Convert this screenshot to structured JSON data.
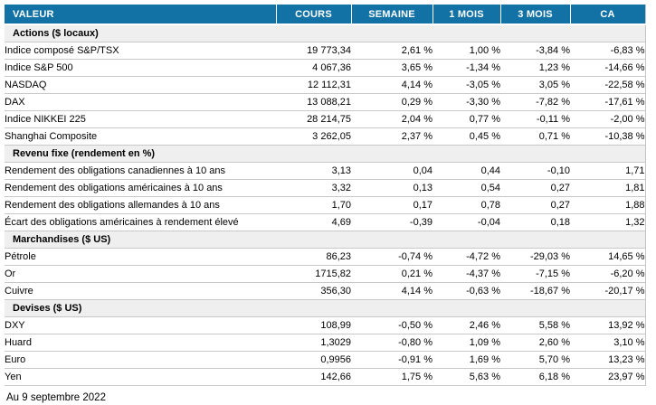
{
  "colors": {
    "header_bg": "#1272a5",
    "header_text": "#ffffff",
    "positive": "#23a469",
    "negative": "#e82d3e",
    "section_bg": "#efefef",
    "row_border": "#c8c8c8"
  },
  "table": {
    "columns": [
      "VALEUR",
      "COURS",
      "SEMAINE",
      "1 MOIS",
      "3 MOIS",
      "CA"
    ],
    "sections": [
      {
        "title": "Actions ($ locaux)",
        "rows": [
          {
            "label": "Indice composé S&P/TSX",
            "cours": "19 773,34",
            "changes": [
              {
                "text": "2,61 %",
                "dir": "up"
              },
              {
                "text": "1,00 %",
                "dir": "up"
              },
              {
                "text": "-3,84 %",
                "dir": "down"
              },
              {
                "text": "-6,83 %",
                "dir": "down"
              }
            ]
          },
          {
            "label": "Indice S&P 500",
            "cours": "4 067,36",
            "changes": [
              {
                "text": "3,65 %",
                "dir": "up"
              },
              {
                "text": "-1,34 %",
                "dir": "down"
              },
              {
                "text": "1,23 %",
                "dir": "up"
              },
              {
                "text": "-14,66 %",
                "dir": "down"
              }
            ]
          },
          {
            "label": "NASDAQ",
            "cours": "12 112,31",
            "changes": [
              {
                "text": "4,14 %",
                "dir": "up"
              },
              {
                "text": "-3,05 %",
                "dir": "down"
              },
              {
                "text": "3,05 %",
                "dir": "up"
              },
              {
                "text": "-22,58 %",
                "dir": "down"
              }
            ]
          },
          {
            "label": "DAX",
            "cours": "13 088,21",
            "changes": [
              {
                "text": "0,29 %",
                "dir": "up"
              },
              {
                "text": "-3,30 %",
                "dir": "down"
              },
              {
                "text": "-7,82 %",
                "dir": "down"
              },
              {
                "text": "-17,61 %",
                "dir": "down"
              }
            ]
          },
          {
            "label": "Indice NIKKEI 225",
            "cours": "28 214,75",
            "changes": [
              {
                "text": "2,04 %",
                "dir": "up"
              },
              {
                "text": "0,77 %",
                "dir": "up"
              },
              {
                "text": "-0,11 %",
                "dir": "down"
              },
              {
                "text": "-2,00 %",
                "dir": "down"
              }
            ]
          },
          {
            "label": "Shanghai Composite",
            "cours": "3 262,05",
            "changes": [
              {
                "text": "2,37 %",
                "dir": "up"
              },
              {
                "text": "0,45 %",
                "dir": "up"
              },
              {
                "text": "0,71 %",
                "dir": "up"
              },
              {
                "text": "-10,38 %",
                "dir": "down"
              }
            ]
          }
        ]
      },
      {
        "title": "Revenu fixe (rendement en %)",
        "rows": [
          {
            "label": "Rendement des obligations canadiennes à 10 ans",
            "cours": "3,13",
            "changes": [
              {
                "text": "0,04",
                "dir": "down"
              },
              {
                "text": "0,44",
                "dir": "down"
              },
              {
                "text": "-0,10",
                "dir": "up"
              },
              {
                "text": "1,71",
                "dir": "down"
              }
            ]
          },
          {
            "label": "Rendement des obligations américaines à 10 ans",
            "cours": "3,32",
            "changes": [
              {
                "text": "0,13",
                "dir": "down"
              },
              {
                "text": "0,54",
                "dir": "down"
              },
              {
                "text": "0,27",
                "dir": "down"
              },
              {
                "text": "1,81",
                "dir": "down"
              }
            ]
          },
          {
            "label": "Rendement des obligations allemandes à 10 ans",
            "cours": "1,70",
            "changes": [
              {
                "text": "0,17",
                "dir": "down"
              },
              {
                "text": "0,78",
                "dir": "down"
              },
              {
                "text": "0,27",
                "dir": "down"
              },
              {
                "text": "1,88",
                "dir": "down"
              }
            ]
          },
          {
            "label": "Écart des obligations américaines à rendement élevé",
            "cours": "4,69",
            "changes": [
              {
                "text": "-0,39",
                "dir": "up"
              },
              {
                "text": "-0,04",
                "dir": "up"
              },
              {
                "text": "0,18",
                "dir": "down"
              },
              {
                "text": "1,32",
                "dir": "down"
              }
            ]
          }
        ]
      },
      {
        "title": "Marchandises ($ US)",
        "rows": [
          {
            "label": "Pétrole",
            "cours": "86,23",
            "changes": [
              {
                "text": "-0,74 %",
                "dir": "down"
              },
              {
                "text": "-4,72 %",
                "dir": "down"
              },
              {
                "text": "-29,03 %",
                "dir": "down"
              },
              {
                "text": "14,65 %",
                "dir": "up"
              }
            ]
          },
          {
            "label": "Or",
            "cours": "1715,82",
            "changes": [
              {
                "text": "0,21 %",
                "dir": "up"
              },
              {
                "text": "-4,37 %",
                "dir": "down"
              },
              {
                "text": "-7,15 %",
                "dir": "down"
              },
              {
                "text": "-6,20 %",
                "dir": "down"
              }
            ]
          },
          {
            "label": "Cuivre",
            "cours": "356,30",
            "changes": [
              {
                "text": "4,14 %",
                "dir": "up"
              },
              {
                "text": "-0,63 %",
                "dir": "down"
              },
              {
                "text": "-18,67 %",
                "dir": "down"
              },
              {
                "text": "-20,17 %",
                "dir": "down"
              }
            ]
          }
        ]
      },
      {
        "title": "Devises ($ US)",
        "rows": [
          {
            "label": "DXY",
            "cours": "108,99",
            "changes": [
              {
                "text": "-0,50 %",
                "dir": "down"
              },
              {
                "text": "2,46 %",
                "dir": "up"
              },
              {
                "text": "5,58 %",
                "dir": "up"
              },
              {
                "text": "13,92 %",
                "dir": "up"
              }
            ]
          },
          {
            "label": "Huard",
            "cours": "1,3029",
            "changes": [
              {
                "text": "-0,80 %",
                "dir": "down"
              },
              {
                "text": "1,09 %",
                "dir": "up"
              },
              {
                "text": "2,60 %",
                "dir": "up"
              },
              {
                "text": "3,10 %",
                "dir": "up"
              }
            ]
          },
          {
            "label": "Euro",
            "cours": "0,9956",
            "changes": [
              {
                "text": "-0,91 %",
                "dir": "down"
              },
              {
                "text": "1,69 %",
                "dir": "up"
              },
              {
                "text": "5,70 %",
                "dir": "up"
              },
              {
                "text": "13,23 %",
                "dir": "up"
              }
            ]
          },
          {
            "label": "Yen",
            "cours": "142,66",
            "changes": [
              {
                "text": "1,75 %",
                "dir": "up"
              },
              {
                "text": "5,63 %",
                "dir": "up"
              },
              {
                "text": "6,18 %",
                "dir": "up"
              },
              {
                "text": "23,97 %",
                "dir": "up"
              }
            ]
          }
        ]
      }
    ]
  },
  "footer": {
    "as_of": "Au 9 septembre 2022"
  }
}
